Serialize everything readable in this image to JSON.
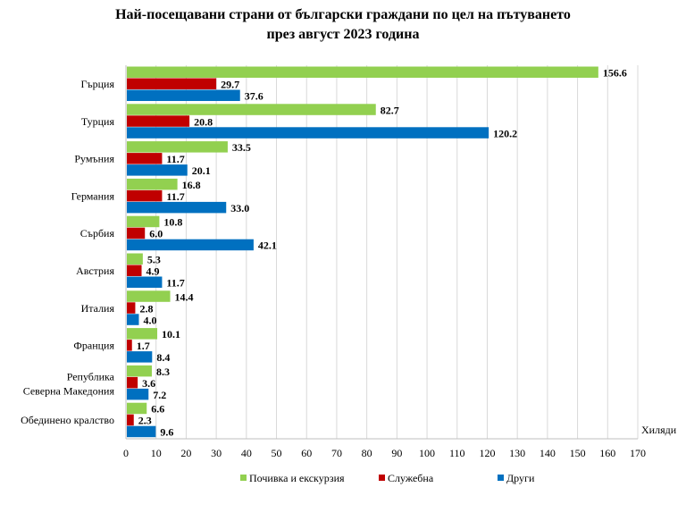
{
  "chart_data": {
    "type": "bar",
    "orientation": "horizontal",
    "title_line1": "Най-посещавани страни от български граждани по цел на пътуването",
    "title_line2": "през август 2023 година",
    "xlabel": "Хиляди",
    "xlim": [
      0,
      170
    ],
    "xticks": [
      "0",
      "10",
      "20",
      "30",
      "40",
      "50",
      "60",
      "70",
      "80",
      "90",
      "100",
      "110",
      "120",
      "130",
      "140",
      "150",
      "160",
      "170"
    ],
    "grid": true,
    "legend_position": "bottom",
    "categories": [
      [
        "Гърция"
      ],
      [
        "Турция"
      ],
      [
        "Румъния"
      ],
      [
        "Германия"
      ],
      [
        "Сърбия"
      ],
      [
        "Австрия"
      ],
      [
        "Италия"
      ],
      [
        "Франция"
      ],
      [
        "Република",
        "Северна Македония"
      ],
      [
        "Обединено кралство"
      ]
    ],
    "series": [
      {
        "name": "Почивка и екскурзия",
        "color": "#92D050",
        "values": [
          156.6,
          82.7,
          33.5,
          16.8,
          10.8,
          5.3,
          14.4,
          10.1,
          8.3,
          6.6
        ],
        "labels": [
          "156.6",
          "82.7",
          "33.5",
          "16.8",
          "10.8",
          "5.3",
          "14.4",
          "10.1",
          "8.3",
          "6.6"
        ]
      },
      {
        "name": "Служебна",
        "color": "#C00000",
        "values": [
          29.7,
          20.8,
          11.7,
          11.7,
          6.0,
          4.9,
          2.8,
          1.7,
          3.6,
          2.3
        ],
        "labels": [
          "29.7",
          "20.8",
          "11.7",
          "11.7",
          "6.0",
          "4.9",
          "2.8",
          "1.7",
          "3.6",
          "2.3"
        ]
      },
      {
        "name": "Други",
        "color": "#0070C0",
        "values": [
          37.6,
          120.2,
          20.1,
          33.0,
          42.1,
          11.7,
          4.0,
          8.4,
          7.2,
          9.6
        ],
        "labels": [
          "37.6",
          "120.2",
          "20.1",
          "33.0",
          "42.1",
          "11.7",
          "4.0",
          "8.4",
          "7.2",
          "9.6"
        ]
      }
    ]
  }
}
